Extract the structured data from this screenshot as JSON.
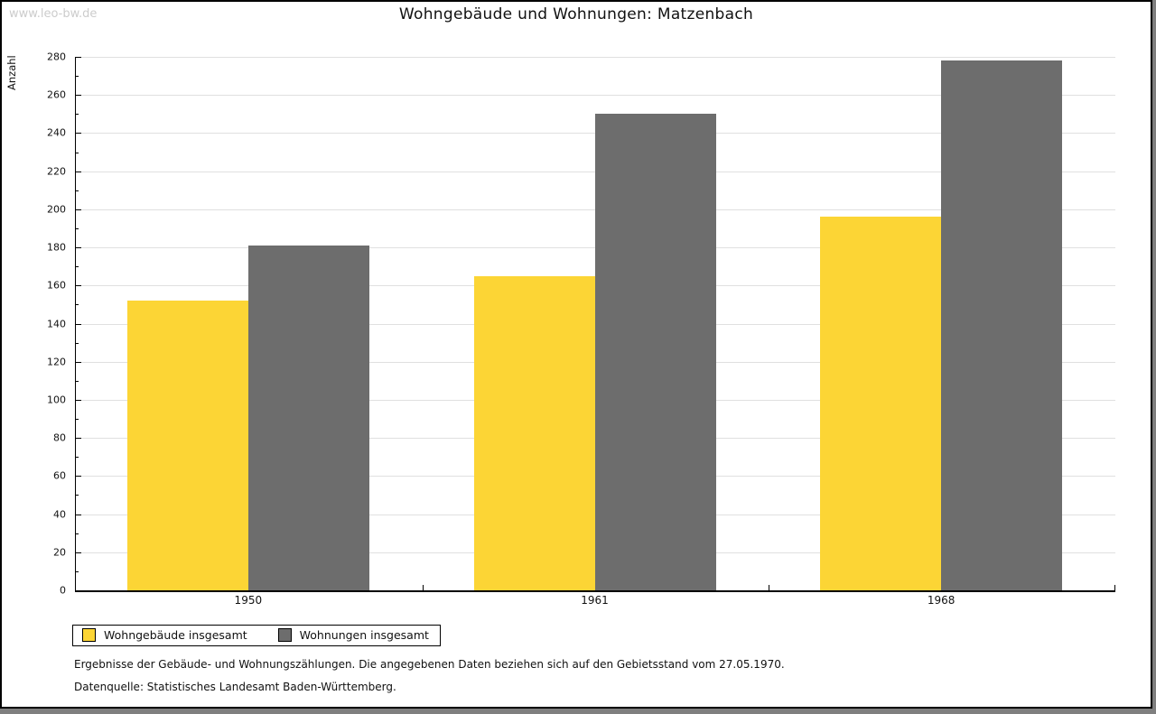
{
  "page": {
    "watermark": "www.leo-bw.de",
    "title": "Wohngebäude und Wohnungen: Matzenbach"
  },
  "footer": {
    "line1": "Ergebnisse der Gebäude- und Wohnungszählungen. Die angegebenen Daten beziehen sich auf den Gebietsstand vom 27.05.1970.",
    "line2": "Datenquelle: Statistisches Landesamt Baden-Württemberg."
  },
  "colors": {
    "series_yellow": "#fcd535",
    "series_gray": "#6d6d6d",
    "gridline": "#e0e0e0",
    "watermark": "#cccccc",
    "axis": "#000000",
    "background_shadow": "#7f7f7f"
  },
  "chart_data": {
    "type": "bar",
    "title": "Wohngebäude und Wohnungen: Matzenbach",
    "categories": [
      "1950",
      "1961",
      "1968"
    ],
    "series": [
      {
        "name": "Wohngebäude insgesamt",
        "color": "#fcd535",
        "values": [
          152,
          165,
          196
        ]
      },
      {
        "name": "Wohnungen insgesamt",
        "color": "#6d6d6d",
        "values": [
          181,
          250,
          278
        ]
      }
    ],
    "xlabel": "",
    "ylabel": "Anzahl",
    "ylim": [
      0,
      280
    ],
    "ytick_major": 20,
    "ytick_minor": 10,
    "grid": true,
    "legend_position": "bottom-left"
  }
}
